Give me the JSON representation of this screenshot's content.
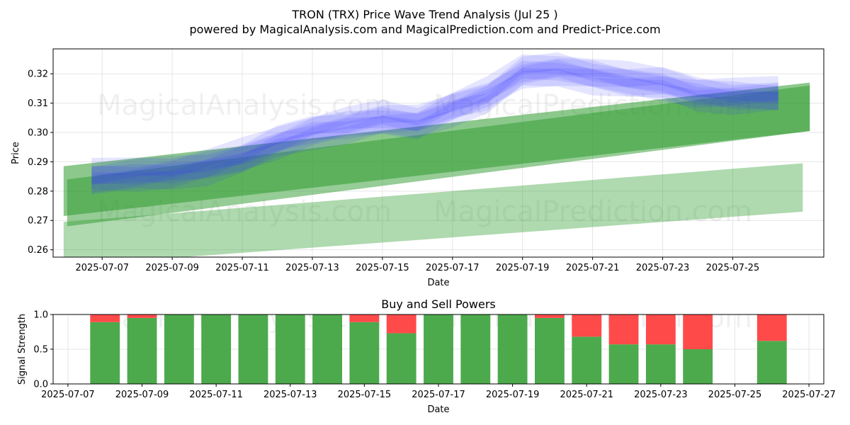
{
  "title_line1": "TRON (TRX) Price Wave Trend Analysis (Jul 25 )",
  "title_line2": "powered by MagicalAnalysis.com and MagicalPrediction.com and Predict-Price.com",
  "watermarks": [
    "MagicalAnalysis.com",
    "MagicalPrediction.com"
  ],
  "colors": {
    "blue_wave": "#3333ff",
    "green_band": "#2e9a2e",
    "buy": "#4caa4c",
    "sell": "#ff4a4a",
    "grid": "#e6e6e6"
  },
  "chart_data": [
    {
      "type": "area",
      "title": "TRON (TRX) Price Wave Trend Analysis (Jul 25 )",
      "xlabel": "Date",
      "ylabel": "Price",
      "ylim": [
        0.2575,
        0.3285
      ],
      "xlim_days": [
        5.6,
        27.6
      ],
      "x_tick_labels": [
        "2025-07-07",
        "2025-07-09",
        "2025-07-11",
        "2025-07-13",
        "2025-07-15",
        "2025-07-17",
        "2025-07-19",
        "2025-07-21",
        "2025-07-23",
        "2025-07-25"
      ],
      "x_tick_days": [
        7,
        9,
        11,
        13,
        15,
        17,
        19,
        21,
        23,
        25
      ],
      "y_ticks": [
        0.26,
        0.27,
        0.28,
        0.29,
        0.3,
        0.31,
        0.32
      ],
      "y_tick_labels": [
        "0.26",
        "0.27",
        "0.28",
        "0.29",
        "0.30",
        "0.31",
        "0.32"
      ],
      "grid": true,
      "price_wave_x": [
        6.7,
        8,
        9,
        10,
        11,
        12,
        13,
        14,
        15,
        16,
        17,
        18,
        19,
        20,
        21,
        22,
        23,
        24,
        25,
        26.3
      ],
      "price_wave_center": [
        0.2845,
        0.2855,
        0.2865,
        0.2885,
        0.2915,
        0.2965,
        0.3005,
        0.3025,
        0.3045,
        0.3035,
        0.3085,
        0.3125,
        0.3205,
        0.3215,
        0.3195,
        0.3175,
        0.3165,
        0.3135,
        0.3125,
        0.3125
      ],
      "price_wave_offsets": [
        -0.0045,
        -0.003,
        -0.0015,
        0,
        0.0015,
        0.003,
        0.0045
      ],
      "price_wave_halfwidth": 0.003,
      "trend_bands": [
        {
          "x": [
            5.9,
            27.2
          ],
          "top": [
            0.2885,
            0.317
          ],
          "bottom": [
            0.2715,
            0.3005
          ],
          "opacity": 0.55
        },
        {
          "x": [
            6.0,
            27.2
          ],
          "top": [
            0.284,
            0.316
          ],
          "bottom": [
            0.268,
            0.3005
          ],
          "opacity": 0.5
        },
        {
          "x": [
            5.9,
            27.0
          ],
          "top": [
            0.2695,
            0.2895
          ],
          "bottom": [
            0.2545,
            0.273
          ],
          "opacity": 0.38
        }
      ]
    },
    {
      "type": "bar",
      "title": "Buy and Sell Powers",
      "xlabel": "Date",
      "ylabel": "Signal Strength",
      "ylim": [
        0,
        1
      ],
      "xlim_days": [
        6.6,
        27.4
      ],
      "x_tick_labels": [
        "2025-07-07",
        "2025-07-09",
        "2025-07-11",
        "2025-07-13",
        "2025-07-15",
        "2025-07-17",
        "2025-07-19",
        "2025-07-21",
        "2025-07-23",
        "2025-07-25",
        "2025-07-27"
      ],
      "x_tick_days": [
        7,
        9,
        11,
        13,
        15,
        17,
        19,
        21,
        23,
        25,
        27
      ],
      "y_ticks": [
        0,
        0.5,
        1.0
      ],
      "y_tick_labels": [
        "0.0",
        "0.5",
        "1.0"
      ],
      "grid": true,
      "days": [
        8,
        9,
        10,
        11,
        12,
        13,
        14,
        15,
        16,
        17,
        18,
        19,
        20,
        21,
        22,
        23,
        24,
        26
      ],
      "buy": [
        0.89,
        0.95,
        1.0,
        1.0,
        1.0,
        1.0,
        1.0,
        0.89,
        0.73,
        1.0,
        1.0,
        1.0,
        0.95,
        0.68,
        0.57,
        0.57,
        0.5,
        0.62
      ],
      "sell": [
        0.11,
        0.05,
        0.0,
        0.0,
        0.0,
        0.0,
        0.0,
        0.11,
        0.27,
        0.0,
        0.0,
        0.0,
        0.05,
        0.32,
        0.43,
        0.43,
        0.5,
        0.38
      ]
    }
  ]
}
